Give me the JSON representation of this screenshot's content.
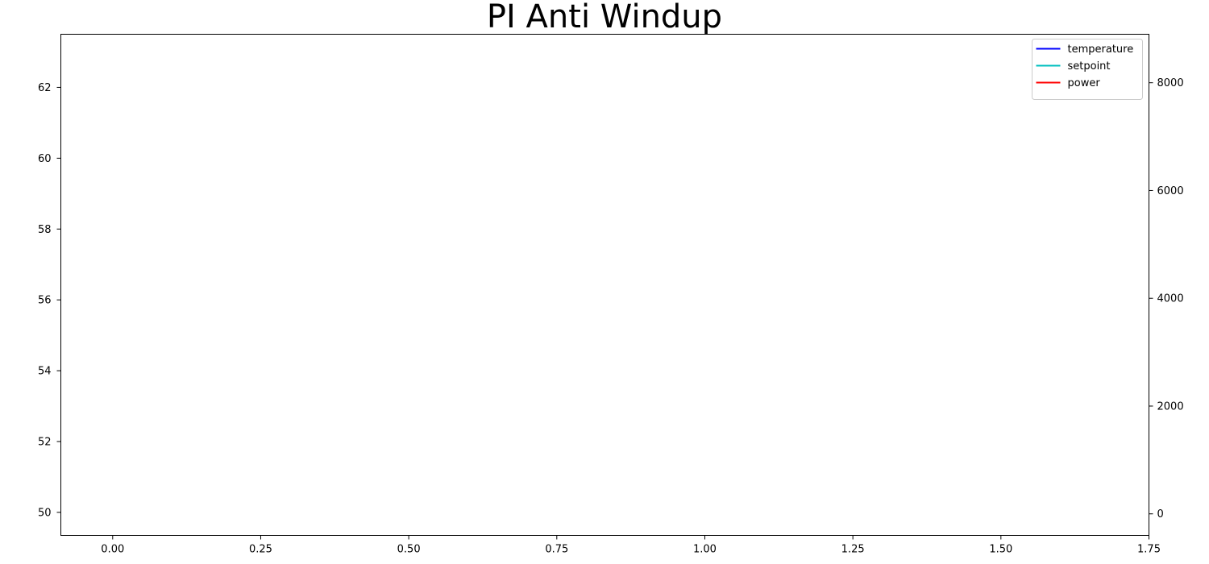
{
  "chart_data": {
    "type": "line",
    "title": "PI Anti Windup",
    "xlabel": "",
    "ylabel": "",
    "y2label": "",
    "xlim": [
      -0.0875,
      1.75
    ],
    "ylim": [
      49.35,
      63.5
    ],
    "y2lim": [
      -400,
      8900
    ],
    "x_ticks": [
      "0.00",
      "0.25",
      "0.50",
      "0.75",
      "1.00",
      "1.25",
      "1.50",
      "1.75"
    ],
    "y_ticks": [
      "50",
      "52",
      "54",
      "56",
      "58",
      "60",
      "62"
    ],
    "y2_ticks": [
      "0",
      "2000",
      "4000",
      "6000",
      "8000"
    ],
    "grid": false,
    "legend_position": "top-right",
    "series": [
      {
        "name": "temperature",
        "color": "#0000ff",
        "axis": "left",
        "x": [],
        "y": []
      },
      {
        "name": "setpoint",
        "color": "#00bfbf",
        "axis": "left",
        "x": [],
        "y": []
      },
      {
        "name": "power",
        "color": "#ff0000",
        "axis": "right",
        "x": [],
        "y": []
      }
    ]
  }
}
